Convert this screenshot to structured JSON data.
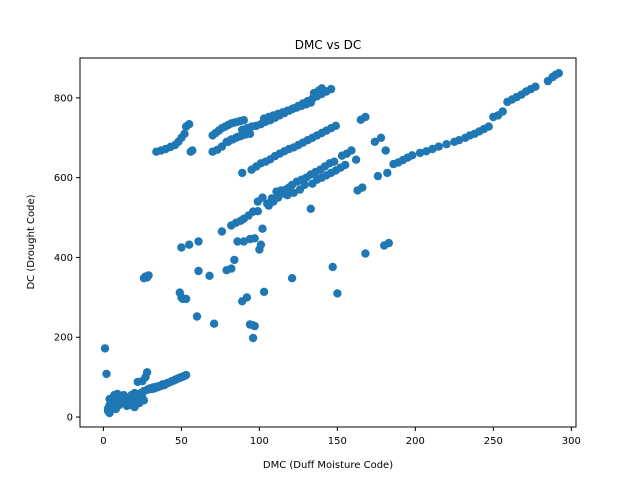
{
  "chart_data": {
    "type": "scatter",
    "title": "DMC vs DC",
    "xlabel": "DMC (Duff Moisture Code)",
    "ylabel": "DC (Drought Code)",
    "xlim": [
      -15,
      303
    ],
    "ylim": [
      -25,
      900
    ],
    "xticks": [
      0,
      50,
      100,
      150,
      200,
      250,
      300
    ],
    "yticks": [
      0,
      200,
      400,
      600,
      800
    ],
    "grid": false,
    "marker_color": "#1f77b4",
    "points": [
      [
        1,
        172
      ],
      [
        2,
        108
      ],
      [
        3,
        15
      ],
      [
        3,
        22
      ],
      [
        4,
        10
      ],
      [
        4,
        30
      ],
      [
        4,
        45
      ],
      [
        5,
        18
      ],
      [
        5,
        40
      ],
      [
        6,
        25
      ],
      [
        6,
        48
      ],
      [
        7,
        35
      ],
      [
        7,
        55
      ],
      [
        8,
        20
      ],
      [
        8,
        42
      ],
      [
        9,
        38
      ],
      [
        9,
        58
      ],
      [
        10,
        30
      ],
      [
        10,
        50
      ],
      [
        11,
        45
      ],
      [
        12,
        35
      ],
      [
        12,
        40
      ],
      [
        13,
        55
      ],
      [
        14,
        42
      ],
      [
        15,
        28
      ],
      [
        15,
        48
      ],
      [
        16,
        35
      ],
      [
        17,
        45
      ],
      [
        18,
        30
      ],
      [
        18,
        55
      ],
      [
        19,
        40
      ],
      [
        20,
        25
      ],
      [
        20,
        60
      ],
      [
        21,
        42
      ],
      [
        22,
        50
      ],
      [
        22,
        88
      ],
      [
        23,
        35
      ],
      [
        24,
        60
      ],
      [
        25,
        48
      ],
      [
        25,
        90
      ],
      [
        26,
        42
      ],
      [
        26,
        65
      ],
      [
        27,
        100
      ],
      [
        28,
        68
      ],
      [
        28,
        112
      ],
      [
        29,
        70
      ],
      [
        30,
        72
      ],
      [
        31,
        70
      ],
      [
        32,
        74
      ],
      [
        33,
        72
      ],
      [
        34,
        76
      ],
      [
        35,
        75
      ],
      [
        36,
        78
      ],
      [
        37,
        78
      ],
      [
        38,
        82
      ],
      [
        39,
        80
      ],
      [
        40,
        83
      ],
      [
        41,
        85
      ],
      [
        42,
        86
      ],
      [
        43,
        88
      ],
      [
        44,
        90
      ],
      [
        45,
        91
      ],
      [
        46,
        93
      ],
      [
        47,
        95
      ],
      [
        48,
        97
      ],
      [
        49,
        98
      ],
      [
        50,
        100
      ],
      [
        51,
        101
      ],
      [
        52,
        103
      ],
      [
        53,
        105
      ],
      [
        26,
        348
      ],
      [
        27,
        352
      ],
      [
        28,
        350
      ],
      [
        29,
        355
      ],
      [
        49,
        312
      ],
      [
        50,
        300
      ],
      [
        51,
        296
      ],
      [
        53,
        296
      ],
      [
        50,
        425
      ],
      [
        55,
        432
      ],
      [
        61,
        440
      ],
      [
        60,
        252
      ],
      [
        61,
        366
      ],
      [
        68,
        354
      ],
      [
        71,
        234
      ],
      [
        79,
        368
      ],
      [
        82,
        372
      ],
      [
        84,
        394
      ],
      [
        89,
        290
      ],
      [
        92,
        300
      ],
      [
        94,
        232
      ],
      [
        96,
        230
      ],
      [
        97,
        228
      ],
      [
        96,
        198
      ],
      [
        86,
        440
      ],
      [
        90,
        440
      ],
      [
        94,
        446
      ],
      [
        97,
        448
      ],
      [
        100,
        420
      ],
      [
        101,
        432
      ],
      [
        102,
        472
      ],
      [
        103,
        314
      ],
      [
        76,
        465
      ],
      [
        82,
        480
      ],
      [
        85,
        487
      ],
      [
        88,
        492
      ],
      [
        90,
        497
      ],
      [
        93,
        505
      ],
      [
        96,
        515
      ],
      [
        99,
        540
      ],
      [
        102,
        550
      ],
      [
        89,
        612
      ],
      [
        95,
        620
      ],
      [
        98,
        628
      ],
      [
        101,
        636
      ],
      [
        104,
        640
      ],
      [
        107,
        646
      ],
      [
        110,
        654
      ],
      [
        113,
        660
      ],
      [
        116,
        666
      ],
      [
        119,
        672
      ],
      [
        122,
        676
      ],
      [
        125,
        682
      ],
      [
        128,
        688
      ],
      [
        131,
        694
      ],
      [
        134,
        700
      ],
      [
        137,
        706
      ],
      [
        140,
        712
      ],
      [
        143,
        718
      ],
      [
        146,
        724
      ],
      [
        149,
        730
      ],
      [
        106,
        530
      ],
      [
        109,
        540
      ],
      [
        112,
        550
      ],
      [
        115,
        560
      ],
      [
        117,
        570
      ],
      [
        119,
        575
      ],
      [
        121,
        582
      ],
      [
        124,
        590
      ],
      [
        127,
        595
      ],
      [
        130,
        600
      ],
      [
        133,
        608
      ],
      [
        136,
        614
      ],
      [
        139,
        620
      ],
      [
        142,
        628
      ],
      [
        145,
        636
      ],
      [
        148,
        640
      ],
      [
        99,
        516
      ],
      [
        105,
        535
      ],
      [
        108,
        548
      ],
      [
        111,
        565
      ],
      [
        114,
        568
      ],
      [
        118,
        556
      ],
      [
        122,
        562
      ],
      [
        126,
        570
      ],
      [
        129,
        582
      ],
      [
        133,
        522
      ],
      [
        134,
        585
      ],
      [
        137,
        595
      ],
      [
        140,
        600
      ],
      [
        143,
        606
      ],
      [
        146,
        612
      ],
      [
        149,
        618
      ],
      [
        152,
        625
      ],
      [
        155,
        632
      ],
      [
        153,
        655
      ],
      [
        156,
        660
      ],
      [
        159,
        668
      ],
      [
        162,
        645
      ],
      [
        163,
        568
      ],
      [
        166,
        575
      ],
      [
        165,
        745
      ],
      [
        168,
        752
      ],
      [
        168,
        410
      ],
      [
        180,
        430
      ],
      [
        183,
        436
      ],
      [
        174,
        690
      ],
      [
        178,
        700
      ],
      [
        181,
        668
      ],
      [
        182,
        612
      ],
      [
        176,
        604
      ],
      [
        121,
        348
      ],
      [
        147,
        376
      ],
      [
        150,
        310
      ],
      [
        53,
        728
      ],
      [
        55,
        734
      ],
      [
        56,
        665
      ],
      [
        57,
        668
      ],
      [
        34,
        665
      ],
      [
        37,
        668
      ],
      [
        40,
        672
      ],
      [
        43,
        677
      ],
      [
        46,
        682
      ],
      [
        48,
        690
      ],
      [
        50,
        700
      ],
      [
        52,
        710
      ],
      [
        70,
        706
      ],
      [
        72,
        712
      ],
      [
        74,
        718
      ],
      [
        76,
        724
      ],
      [
        78,
        728
      ],
      [
        80,
        732
      ],
      [
        82,
        736
      ],
      [
        84,
        738
      ],
      [
        86,
        740
      ],
      [
        88,
        742
      ],
      [
        90,
        744
      ],
      [
        70,
        665
      ],
      [
        73,
        670
      ],
      [
        76,
        678
      ],
      [
        79,
        690
      ],
      [
        82,
        696
      ],
      [
        85,
        700
      ],
      [
        88,
        704
      ],
      [
        91,
        708
      ],
      [
        94,
        710
      ],
      [
        80,
        690
      ],
      [
        83,
        696
      ],
      [
        86,
        702
      ],
      [
        89,
        720
      ],
      [
        92,
        724
      ],
      [
        95,
        728
      ],
      [
        98,
        730
      ],
      [
        101,
        734
      ],
      [
        104,
        740
      ],
      [
        107,
        744
      ],
      [
        110,
        750
      ],
      [
        113,
        756
      ],
      [
        116,
        762
      ],
      [
        119,
        768
      ],
      [
        122,
        774
      ],
      [
        125,
        780
      ],
      [
        128,
        786
      ],
      [
        131,
        792
      ],
      [
        134,
        798
      ],
      [
        137,
        804
      ],
      [
        140,
        810
      ],
      [
        143,
        816
      ],
      [
        146,
        822
      ],
      [
        103,
        748
      ],
      [
        106,
        752
      ],
      [
        109,
        756
      ],
      [
        112,
        760
      ],
      [
        115,
        764
      ],
      [
        118,
        768
      ],
      [
        121,
        772
      ],
      [
        124,
        776
      ],
      [
        127,
        780
      ],
      [
        130,
        784
      ],
      [
        133,
        788
      ],
      [
        135,
        812
      ],
      [
        138,
        818
      ],
      [
        140,
        824
      ],
      [
        186,
        634
      ],
      [
        189,
        638
      ],
      [
        192,
        644
      ],
      [
        195,
        650
      ],
      [
        198,
        656
      ],
      [
        203,
        662
      ],
      [
        207,
        666
      ],
      [
        211,
        672
      ],
      [
        215,
        678
      ],
      [
        220,
        684
      ],
      [
        225,
        690
      ],
      [
        228,
        694
      ],
      [
        232,
        700
      ],
      [
        235,
        706
      ],
      [
        238,
        710
      ],
      [
        241,
        716
      ],
      [
        244,
        722
      ],
      [
        247,
        728
      ],
      [
        250,
        752
      ],
      [
        253,
        756
      ],
      [
        256,
        766
      ],
      [
        259,
        790
      ],
      [
        262,
        796
      ],
      [
        265,
        802
      ],
      [
        268,
        808
      ],
      [
        271,
        816
      ],
      [
        274,
        822
      ],
      [
        277,
        828
      ],
      [
        285,
        842
      ],
      [
        288,
        852
      ],
      [
        290,
        858
      ],
      [
        292,
        862
      ]
    ]
  }
}
